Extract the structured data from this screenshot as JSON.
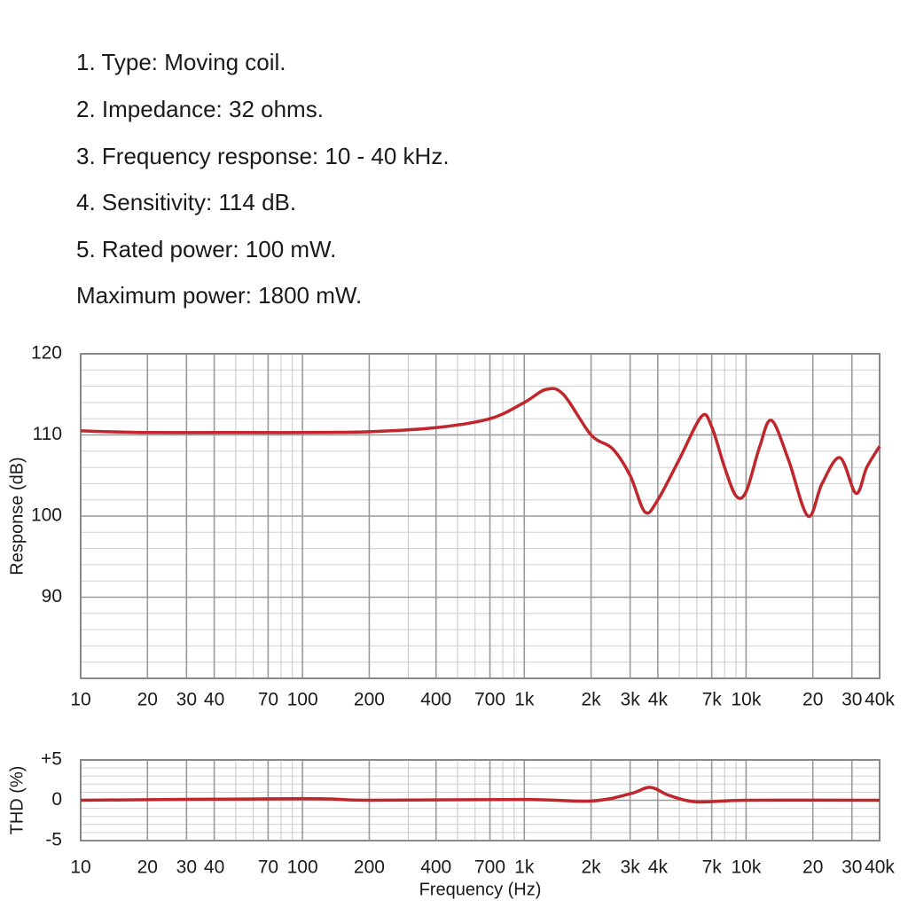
{
  "specs": [
    "1. Type: Moving coil.",
    "2. Impedance: 32 ohms.",
    "3. Frequency response: 10 - 40 kHz.",
    "4. Sensitivity: 114 dB.",
    "5. Rated power: 100 mW.",
    "Maximum power: 1800 mW."
  ],
  "chart_data": [
    {
      "type": "line",
      "y_label": "Response (dB)",
      "x_log": true,
      "grid": true,
      "color": "#c0272d",
      "x": [
        10,
        20,
        50,
        100,
        200,
        400,
        700,
        1000,
        1250,
        1500,
        2000,
        2500,
        3000,
        3500,
        4000,
        5000,
        6300,
        7000,
        8000,
        9000,
        10000,
        11500,
        13000,
        15500,
        19000,
        22000,
        26500,
        31300,
        35000,
        40000
      ],
      "values": [
        110.5,
        110.3,
        110.3,
        110.3,
        110.4,
        110.9,
        112,
        114,
        115.6,
        115,
        110,
        108.3,
        105,
        100.5,
        102,
        107,
        112.3,
        111,
        106,
        102.5,
        103,
        108.5,
        111.8,
        107,
        100,
        104,
        107.2,
        102.8,
        106,
        108.6
      ],
      "xlim": [
        10,
        40000
      ],
      "ylim": [
        80,
        120
      ],
      "xticks": [
        10,
        20,
        30,
        40,
        70,
        100,
        200,
        400,
        700,
        {
          "value": 1000,
          "label": "1k"
        },
        {
          "value": 2000,
          "label": "2k"
        },
        {
          "value": 3000,
          "label": "3k"
        },
        {
          "value": 4000,
          "label": "4k"
        },
        {
          "value": 7000,
          "label": "7k"
        },
        {
          "value": 10000,
          "label": "10k"
        },
        {
          "value": 20000,
          "label": "20"
        },
        {
          "value": 30000,
          "label": "30"
        },
        {
          "value": 40000,
          "label": "40k"
        }
      ],
      "yticks": [
        90,
        100,
        110,
        120
      ]
    },
    {
      "type": "line",
      "y_label": "THD (%)",
      "x_label": "Frequency (Hz)",
      "x_log": true,
      "grid": true,
      "color": "#c0272d",
      "x": [
        10,
        100,
        200,
        1000,
        2000,
        3000,
        3700,
        4500,
        6000,
        10000,
        40000
      ],
      "values": [
        0,
        0.2,
        0,
        0.1,
        -0.1,
        0.8,
        1.6,
        0.6,
        -0.2,
        0,
        0
      ],
      "xlim": [
        10,
        40000
      ],
      "ylim": [
        -5,
        5
      ],
      "xticks": [
        10,
        20,
        30,
        40,
        70,
        100,
        200,
        400,
        700,
        {
          "value": 1000,
          "label": "1k"
        },
        {
          "value": 2000,
          "label": "2k"
        },
        {
          "value": 3000,
          "label": "3k"
        },
        {
          "value": 4000,
          "label": "4k"
        },
        {
          "value": 7000,
          "label": "7k"
        },
        {
          "value": 10000,
          "label": "10k"
        },
        {
          "value": 20000,
          "label": "20"
        },
        {
          "value": 30000,
          "label": "30"
        },
        {
          "value": 40000,
          "label": "40k"
        }
      ],
      "yticks": [
        {
          "value": 5,
          "label": "+5"
        },
        0,
        -5
      ]
    }
  ]
}
